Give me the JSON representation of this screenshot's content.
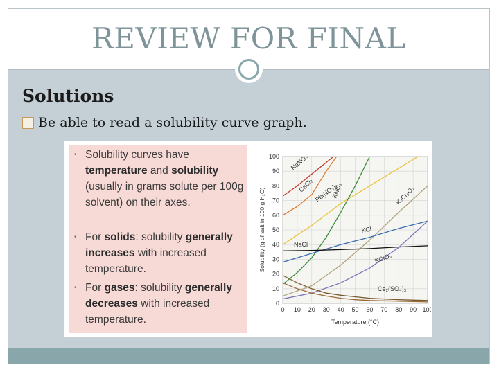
{
  "slide": {
    "title": "REVIEW FOR FINAL",
    "subtitle": "Solutions",
    "bullet": "Be able to read a solubility curve graph."
  },
  "textbox": {
    "items": [
      {
        "bullet": "•",
        "parts": [
          {
            "text": "Solubility curves have ",
            "bold": false
          },
          {
            "text": "temperature",
            "bold": true
          },
          {
            "text": " and ",
            "bold": false
          },
          {
            "text": "solubility",
            "bold": true
          },
          {
            "text": " (usually in grams solute per 100g solvent) on their axes.",
            "bold": false
          }
        ]
      },
      {
        "bullet": "•",
        "parts": [
          {
            "text": "For ",
            "bold": false
          },
          {
            "text": "solids",
            "bold": true
          },
          {
            "text": ":  solubility ",
            "bold": false
          },
          {
            "text": "generally increases",
            "bold": true
          },
          {
            "text": " with increased temperature.",
            "bold": false
          }
        ]
      },
      {
        "bullet": "•",
        "parts": [
          {
            "text": "For ",
            "bold": false
          },
          {
            "text": "gases",
            "bold": true
          },
          {
            "text": ":  solubility ",
            "bold": false
          },
          {
            "text": "generally decreases",
            "bold": true
          },
          {
            "text": " with increased temperature.",
            "bold": false
          }
        ]
      }
    ]
  },
  "chart_data": {
    "type": "line",
    "xlabel": "Temperature (°C)",
    "ylabel": "Solubility (g of salt in 100 g H₂O)",
    "xlim": [
      0,
      100
    ],
    "ylim": [
      0,
      100
    ],
    "x_ticks": [
      "0",
      "10",
      "20",
      "30",
      "40",
      "50",
      "60",
      "70",
      "80",
      "90",
      "100"
    ],
    "y_ticks": [
      "0",
      "10",
      "20",
      "30",
      "40",
      "50",
      "60",
      "70",
      "80",
      "90",
      "100"
    ],
    "grid": true,
    "series": [
      {
        "name": "NaNO₃",
        "color": "#c0392b",
        "x": [
          0,
          10,
          20,
          30,
          40
        ],
        "y": [
          73,
          80,
          88,
          96,
          104
        ]
      },
      {
        "name": "CaCl₂",
        "color": "#e07a2a",
        "x": [
          0,
          10,
          20,
          30,
          40
        ],
        "y": [
          60,
          66,
          74,
          90,
          104
        ]
      },
      {
        "name": "Pb(NO₃)₂",
        "color": "#e8c43a",
        "x": [
          0,
          20,
          40,
          60,
          80,
          100
        ],
        "y": [
          40,
          53,
          68,
          80,
          92,
          104
        ]
      },
      {
        "name": "KNO₃",
        "color": "#3a8c3a",
        "x": [
          0,
          10,
          20,
          30,
          40,
          50,
          60,
          70
        ],
        "y": [
          13,
          21,
          31,
          45,
          62,
          80,
          100,
          110
        ]
      },
      {
        "name": "K₂Cr₂O₇",
        "color": "#b0a37a",
        "x": [
          0,
          20,
          40,
          60,
          80,
          100
        ],
        "y": [
          5,
          12,
          26,
          43,
          62,
          80
        ]
      },
      {
        "name": "KCl",
        "color": "#3a6fb0",
        "x": [
          0,
          20,
          40,
          60,
          80,
          100
        ],
        "y": [
          28,
          34,
          40,
          45,
          51,
          56
        ]
      },
      {
        "name": "NaCl",
        "color": "#111111",
        "x": [
          0,
          20,
          40,
          60,
          80,
          100
        ],
        "y": [
          35.7,
          36,
          36.6,
          37.3,
          38.4,
          39.2
        ]
      },
      {
        "name": "KClO₃",
        "color": "#7b74b8",
        "x": [
          0,
          20,
          40,
          60,
          80,
          100
        ],
        "y": [
          3,
          7,
          14,
          24,
          38,
          56
        ]
      },
      {
        "name": "Ce₂(SO₄)₃",
        "color": "#7a5a2a",
        "x": [
          0,
          10,
          20,
          30,
          40,
          50,
          60,
          80,
          100
        ],
        "y": [
          19,
          14,
          10,
          7,
          5.5,
          4.5,
          3.5,
          2.5,
          2
        ]
      },
      {
        "name": "",
        "color": "#9a6a3a",
        "x": [
          0,
          10,
          20,
          30,
          40,
          50,
          60,
          80,
          100
        ],
        "y": [
          14,
          10,
          7,
          5,
          3.5,
          2.5,
          2,
          1.5,
          1
        ]
      }
    ]
  },
  "colors": {
    "title": "#7f9499",
    "content_bg": "#c4d0d6",
    "footer": "#89a6aa",
    "textbox_bg": "#f7d9d6"
  },
  "icons": {
    "title_ornament": "ring-icon",
    "bullet_box": "checkbox-icon"
  }
}
